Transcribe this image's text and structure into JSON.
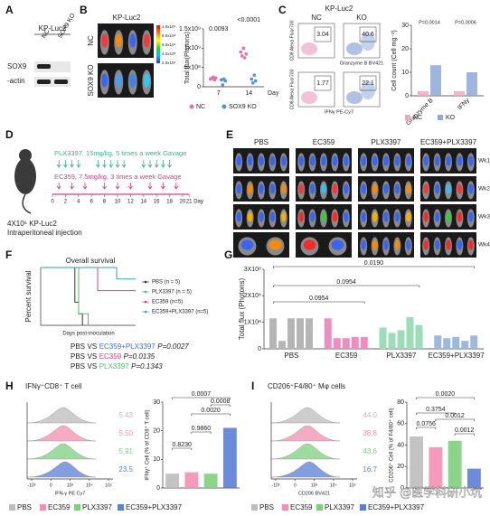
{
  "panels": {
    "A": {
      "letter": "A",
      "group": "KP-Luc2",
      "lanes": [
        "NC",
        "SOX9 KO"
      ],
      "rows": [
        "SOX9",
        "-actin"
      ]
    },
    "B": {
      "letter": "B",
      "title": "KP-Luc2",
      "rows": [
        "NC",
        "SOX9 KO"
      ],
      "colorbar": [
        "1.0x10⁹",
        "8.0x10⁸",
        "6.0x10⁸",
        "4.0x10⁸",
        "2.0x10⁸"
      ]
    },
    "C": {
      "letter": "C",
      "title": "KP-Luc2",
      "columns": [
        "NC",
        "KO"
      ],
      "gates": [
        "3.04",
        "40.6",
        "1.77",
        "22.1"
      ],
      "y_label": "CD8 Alexa Fluor700",
      "x_labels": [
        "Granzyme B BV421",
        "IFNγ PE-Cy7"
      ]
    },
    "D": {
      "letter": "D",
      "plx": "PLX3397, 15mg/kg, 5 times a week Gavage",
      "ec": "EC359, 7.5mg/kg, 3 times a week Gavage",
      "days": [
        "0",
        "2",
        "4",
        "6",
        "8",
        "10",
        "12",
        "14",
        "16",
        "18",
        "20",
        "21"
      ],
      "day_unit": "Day",
      "cells": "4X10⁶ KP-Luc2",
      "route": "Intraperitoneal injection"
    },
    "E": {
      "letter": "E",
      "columns": [
        "PBS",
        "EC359",
        "PLX3397",
        "EC359+PLX3397"
      ],
      "rows": [
        "Wk1",
        "Wk2",
        "Wk3",
        "Wk4"
      ]
    },
    "F": {
      "letter": "F",
      "stats": [
        {
          "a": "PBS",
          "vs": "VS",
          "b": "EC359+PLX3397",
          "color": "#3a6fd8",
          "p": "P=0.0027"
        },
        {
          "a": "PBS",
          "vs": "VS",
          "b": "EC359",
          "color": "#e0407a",
          "p": "P=0.0135"
        },
        {
          "a": "PBS",
          "vs": "VS",
          "b": "PLX3397",
          "color": "#4cbf6a",
          "p": "P=0.1343"
        }
      ]
    },
    "G": {
      "letter": "G"
    },
    "H": {
      "letter": "H",
      "title": "IFNγ⁺CD8⁺ T cell",
      "hist_values": [
        "5.43",
        "5.50",
        "5.91",
        "23.5"
      ],
      "hist_axis": "IFN-γ PE Cy7",
      "hist_ticks": [
        "-10³",
        "0",
        "10³",
        "10⁴",
        "10⁵"
      ]
    },
    "I": {
      "letter": "I",
      "title": "CD206⁺F4/80⁺ Mφ cells",
      "hist_values": [
        "44.0",
        "38.8",
        "43.6",
        "16.7"
      ],
      "hist_axis": "CD206 BV421",
      "hist_ticks": [
        "-10³",
        "0",
        "10³",
        "10⁴",
        "10⁵"
      ]
    }
  },
  "watermark": "知乎 @医学科研小坑",
  "chart_data": [
    {
      "type": "dot",
      "ylabel": "Total flux(Photons)",
      "xlabel": "Day",
      "categories": [
        "7",
        "14"
      ],
      "series": [
        {
          "name": "NC",
          "color": "#e96fb0",
          "values": [
            [
              200000000,
              220000000,
              250000000,
              180000000,
              230000000
            ],
            [
              900000000,
              800000000,
              1000000000,
              750000000,
              850000000
            ]
          ]
        },
        {
          "name": "SOX9 KO",
          "color": "#5a8fd6",
          "values": [
            [
              180000000,
              50000000,
              200000000,
              150000000
            ],
            [
              200000000,
              100000000,
              300000000,
              150000000
            ]
          ]
        }
      ],
      "ylim": [
        0,
        1500000000
      ],
      "yticks": [
        0,
        {
          "value": 500000000,
          "label": "5x10⁸"
        },
        {
          "value": 1000000000,
          "label": "1x10⁹"
        },
        {
          "value": 1500000000,
          "label": "1.5x10⁹"
        }
      ],
      "annotations": [
        "0.0093",
        "<0.0001"
      ]
    },
    {
      "type": "bar",
      "ylabel": "Cell count (Cell mg⁻¹)",
      "categories": [
        "Granzyme B",
        "IFNγ"
      ],
      "series": [
        {
          "name": "NC",
          "color": "#f4a6c4",
          "values": [
            2,
            2
          ]
        },
        {
          "name": "KO",
          "color": "#8fa8d8",
          "values": [
            13,
            10
          ]
        }
      ],
      "ylim": [
        0,
        30
      ],
      "yticks": [
        0,
        10,
        20,
        30
      ],
      "annotations": [
        "P=0.0014",
        "P=0.0006"
      ]
    },
    {
      "type": "line",
      "title": "Overall survival",
      "ylabel": "Percent survival",
      "xlabel": "Days post-inoculation",
      "xlim": [
        0,
        50
      ],
      "ylim": [
        0,
        100
      ],
      "series": [
        {
          "name": "PBS (n = 5)",
          "color": "#333333",
          "x": [
            0,
            18,
            18,
            20,
            20,
            22,
            22
          ],
          "values": [
            100,
            100,
            40,
            40,
            20,
            20,
            0
          ]
        },
        {
          "name": "PLX3397 (n = 5)",
          "color": "#4cbf6a",
          "x": [
            0,
            20,
            20,
            25,
            25
          ],
          "values": [
            100,
            100,
            20,
            20,
            0
          ]
        },
        {
          "name": "EC359 (n=5)",
          "color": "#e0407a",
          "x": [
            0,
            30,
            30,
            50
          ],
          "values": [
            100,
            100,
            60,
            60
          ]
        },
        {
          "name": "EC359+PLX3397 (n=5)",
          "color": "#35a6a6",
          "x": [
            0,
            40,
            40,
            50
          ],
          "values": [
            100,
            100,
            80,
            80
          ]
        }
      ]
    },
    {
      "type": "grouped-bar",
      "ylabel": "Total flux (Photons)",
      "categories": [
        "PBS",
        "EC359",
        "PLX3397",
        "EC359+PLX3397"
      ],
      "colors": [
        "#b5b5b5",
        "#f08cc0",
        "#9ddcb8",
        "#9cb8e0"
      ],
      "values": [
        [
          115000000,
          30000000,
          115000000,
          115000000,
          115000000
        ],
        [
          115000000,
          40000000,
          40000000,
          45000000,
          45000000
        ],
        [
          80000000,
          60000000,
          70000000,
          120000000,
          90000000
        ],
        [
          50000000,
          40000000,
          45000000,
          30000000,
          50000000
        ]
      ],
      "ylim": [
        0,
        300000000
      ],
      "yticks": [
        0,
        {
          "value": 100000000,
          "label": "1X10⁸"
        },
        {
          "value": 200000000,
          "label": "2X10⁸"
        },
        {
          "value": 300000000,
          "label": "3X10⁸"
        }
      ],
      "annotations": [
        "0.0190",
        "0.0954",
        "0.0954"
      ]
    },
    {
      "type": "bar",
      "ylabel": "IFNγ⁺ Cell (% of CD8⁺ T cell)",
      "categories": [
        "PBS",
        "EC359",
        "PLX3397",
        "EC359+PLX3397"
      ],
      "colors": [
        "#bdbdbd",
        "#f48fb1",
        "#7ed07e",
        "#5b7fd6"
      ],
      "values": [
        5,
        5.5,
        5,
        21
      ],
      "ylim": [
        0,
        30
      ],
      "yticks": [
        0,
        10,
        20,
        30
      ],
      "annotations": [
        "0.8230",
        "0.9860",
        "0.0020",
        "0.0007",
        "0.0008"
      ]
    },
    {
      "type": "bar",
      "ylabel": "CD206⁺ Cell (% of F4/80⁺ cell)",
      "categories": [
        "PBS",
        "EC359",
        "PLX3397",
        "EC359+PLX3397"
      ],
      "colors": [
        "#bdbdbd",
        "#f48fb1",
        "#7ed07e",
        "#5b7fd6"
      ],
      "values": [
        48,
        38,
        44,
        18
      ],
      "ylim": [
        0,
        80
      ],
      "yticks": [
        0,
        20,
        40,
        60,
        80
      ],
      "annotations": [
        "0.0756",
        "0.3754",
        "0.0020",
        "0.0012",
        "0.0012"
      ]
    }
  ]
}
